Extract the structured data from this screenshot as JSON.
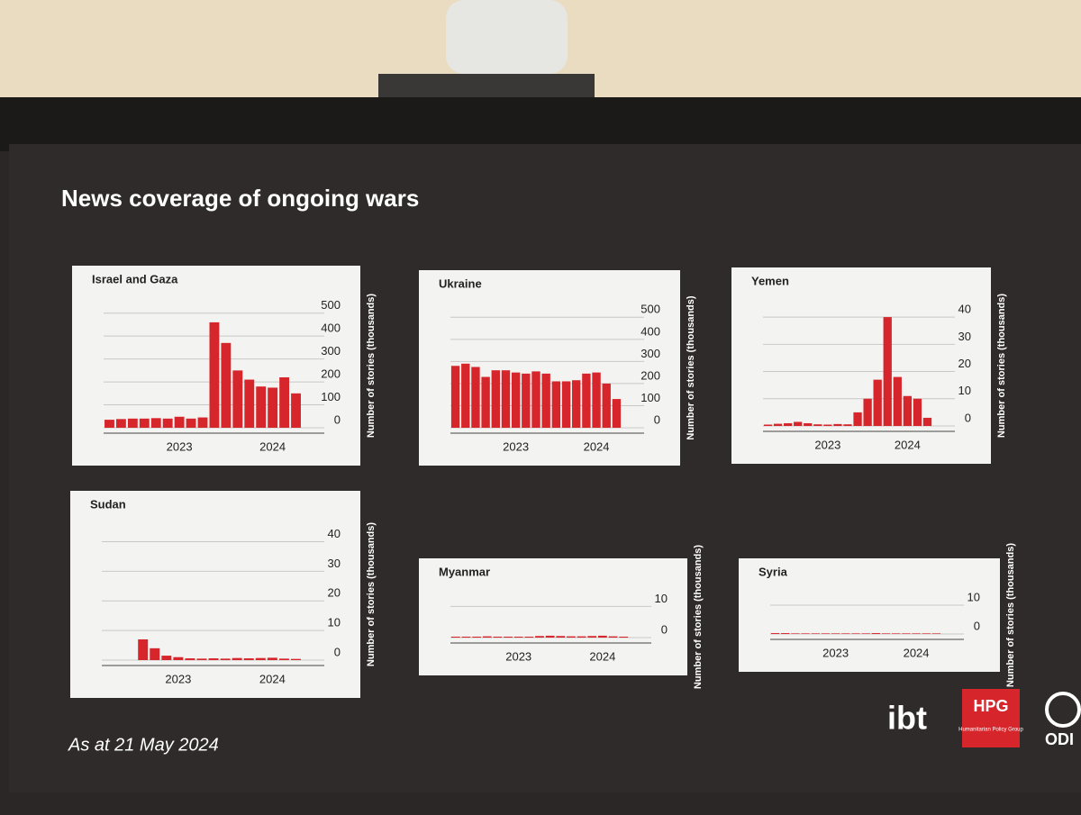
{
  "title": "News coverage of ongoing wars",
  "footnote": "As at 21 May 2024",
  "logos": [
    "ibt",
    "HPG",
    "Humanitarian Policy Group",
    "ODI"
  ],
  "chart_data": [
    {
      "type": "bar",
      "title": "Israel and Gaza",
      "ylabel": "Number of stories (thousands)",
      "color": "#d7262b",
      "categories": [
        null,
        null,
        null,
        null,
        null,
        null,
        "2023",
        null,
        null,
        null,
        null,
        null,
        null,
        null,
        "2024",
        null,
        null
      ],
      "values": [
        35,
        38,
        40,
        40,
        42,
        40,
        48,
        40,
        45,
        460,
        370,
        250,
        210,
        180,
        175,
        220,
        150
      ],
      "ylim": [
        0,
        550
      ],
      "yticks": [
        0,
        100,
        200,
        300,
        400,
        500
      ],
      "grid": true
    },
    {
      "type": "bar",
      "title": "Ukraine",
      "ylabel": "Number of stories (thousands)",
      "color": "#d7262b",
      "categories": [
        null,
        null,
        null,
        null,
        null,
        null,
        "2023",
        null,
        null,
        null,
        null,
        null,
        null,
        null,
        "2024",
        null,
        null
      ],
      "values": [
        280,
        290,
        275,
        230,
        260,
        260,
        250,
        245,
        255,
        245,
        210,
        210,
        215,
        245,
        250,
        200,
        130
      ],
      "ylim": [
        0,
        550
      ],
      "yticks": [
        0,
        100,
        200,
        300,
        400,
        500
      ],
      "grid": true
    },
    {
      "type": "bar",
      "title": "Yemen",
      "ylabel": "Number of stories (thousands)",
      "color": "#d7262b",
      "categories": [
        null,
        null,
        null,
        null,
        null,
        null,
        "2023",
        null,
        null,
        null,
        null,
        null,
        null,
        null,
        "2024",
        null,
        null
      ],
      "values": [
        0.5,
        0.8,
        1,
        1.5,
        1,
        0.6,
        0.5,
        0.7,
        0.6,
        5,
        10,
        17,
        40,
        18,
        11,
        10,
        3
      ],
      "ylim": [
        0,
        45
      ],
      "yticks": [
        0,
        10,
        20,
        30,
        40
      ],
      "grid": true
    },
    {
      "type": "bar",
      "title": "Sudan",
      "ylabel": "Number of stories (thousands)",
      "color": "#d7262b",
      "categories": [
        null,
        null,
        null,
        null,
        null,
        null,
        "2023",
        null,
        null,
        null,
        null,
        null,
        null,
        null,
        "2024",
        null,
        null
      ],
      "values": [
        0,
        0,
        0,
        7,
        4,
        1.5,
        1,
        0.6,
        0.5,
        0.6,
        0.5,
        0.7,
        0.6,
        0.7,
        0.8,
        0.5,
        0.4
      ],
      "ylim": [
        0,
        45
      ],
      "yticks": [
        0,
        10,
        20,
        30,
        40
      ],
      "grid": true
    },
    {
      "type": "bar",
      "title": "Myanmar",
      "ylabel": "Number of stories (thousands)",
      "color": "#d7262b",
      "categories": [
        null,
        null,
        null,
        null,
        null,
        null,
        "2023",
        null,
        null,
        null,
        null,
        null,
        null,
        null,
        "2024",
        null,
        null
      ],
      "values": [
        0.3,
        0.3,
        0.3,
        0.4,
        0.3,
        0.3,
        0.3,
        0.3,
        0.5,
        0.6,
        0.5,
        0.4,
        0.4,
        0.5,
        0.6,
        0.4,
        0.3
      ],
      "ylim": [
        0,
        15
      ],
      "yticks": [
        0,
        10
      ],
      "grid": true
    },
    {
      "type": "bar",
      "title": "Syria",
      "ylabel": "Number of stories (thousands)",
      "color": "#d7262b",
      "categories": [
        null,
        null,
        null,
        null,
        null,
        null,
        "2023",
        null,
        null,
        null,
        null,
        null,
        null,
        null,
        "2024",
        null,
        null
      ],
      "values": [
        0.3,
        0.3,
        0.2,
        0.2,
        0.2,
        0.2,
        0.2,
        0.2,
        0.2,
        0.2,
        0.3,
        0.2,
        0.2,
        0.2,
        0.2,
        0.2,
        0.2
      ],
      "ylim": [
        0,
        15
      ],
      "yticks": [
        0,
        10
      ],
      "grid": true
    }
  ]
}
